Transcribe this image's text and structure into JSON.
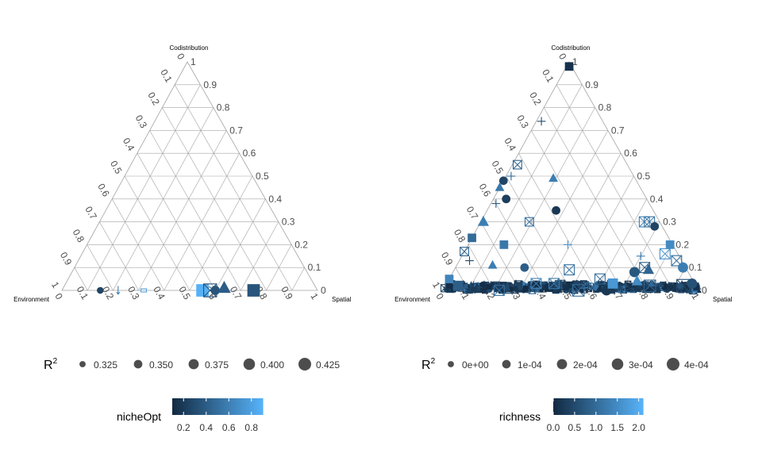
{
  "chart_data": [
    {
      "type": "scatter",
      "subtype": "ternary",
      "axes": {
        "top": "Codistribution",
        "left": "Environment",
        "right": "Spatial"
      },
      "ticks": [
        "0",
        "0.1",
        "0.2",
        "0.3",
        "0.4",
        "0.5",
        "0.6",
        "0.7",
        "0.8",
        "0.9",
        "1"
      ],
      "gridlines": true,
      "legend_size": {
        "title": "R",
        "title_superscript": "2",
        "labels": [
          "0.325",
          "0.350",
          "0.375",
          "0.400",
          "0.425"
        ]
      },
      "legend_color": {
        "title": "nicheOpt",
        "labels": [
          "0.2",
          "0.4",
          "0.6",
          "0.8"
        ],
        "range": [
          0.1,
          0.9
        ],
        "colors": [
          "#132b43",
          "#56b1f7"
        ]
      },
      "points": [
        {
          "codist": 0.0,
          "spatial": 0.15,
          "shape": "circle",
          "size": 0.33,
          "color": 0.25
        },
        {
          "codist": 0.0,
          "spatial": 0.22,
          "shape": "arrow",
          "size": 0.32,
          "color": 0.6
        },
        {
          "codist": 0.0,
          "spatial": 0.32,
          "shape": "square-open",
          "size": 0.32,
          "color": 0.8
        },
        {
          "codist": 0.0,
          "spatial": 0.55,
          "shape": "square",
          "size": 0.42,
          "color": 0.9
        },
        {
          "codist": 0.0,
          "spatial": 0.58,
          "shape": "square-x",
          "size": 0.43,
          "color": 0.3
        },
        {
          "codist": 0.0,
          "spatial": 0.6,
          "shape": "circle",
          "size": 0.36,
          "color": 0.35
        },
        {
          "codist": 0.01,
          "spatial": 0.63,
          "shape": "triangle",
          "size": 0.41,
          "color": 0.4
        },
        {
          "codist": 0.0,
          "spatial": 0.75,
          "shape": "square",
          "size": 0.42,
          "color": 0.35
        }
      ]
    },
    {
      "type": "scatter",
      "subtype": "ternary",
      "axes": {
        "top": "Codistribution",
        "left": "Environment",
        "right": "Spatial"
      },
      "ticks": [
        "0",
        "0.1",
        "0.2",
        "0.3",
        "0.4",
        "0.5",
        "0.6",
        "0.7",
        "0.8",
        "0.9",
        "1"
      ],
      "gridlines": true,
      "legend_size": {
        "title": "R",
        "title_superscript": "2",
        "labels": [
          "0e+00",
          "1e-04",
          "2e-04",
          "3e-04",
          "4e-04"
        ]
      },
      "legend_color": {
        "title": "richness",
        "labels": [
          "0.0",
          "0.5",
          "1.0",
          "1.5",
          "2.0"
        ],
        "range": [
          0.0,
          2.1
        ],
        "colors": [
          "#132b43",
          "#56b1f7"
        ]
      },
      "points": [
        {
          "codist": 0.98,
          "spatial": 0.01,
          "shape": "square",
          "size": 0.0001,
          "color": 0.1
        },
        {
          "codist": 0.74,
          "spatial": 0.02,
          "shape": "cross",
          "size": 0.0001,
          "color": 0.5
        },
        {
          "codist": 0.55,
          "spatial": 0.02,
          "shape": "square-x",
          "size": 0.0001,
          "color": 0.9
        },
        {
          "codist": 0.5,
          "spatial": 0.02,
          "shape": "cross",
          "size": 0.0001,
          "color": 1.0
        },
        {
          "codist": 0.48,
          "spatial": 0.0,
          "shape": "circle",
          "size": 0.0001,
          "color": 0.4
        },
        {
          "codist": 0.45,
          "spatial": 0.0,
          "shape": "triangle",
          "size": 0.0001,
          "color": 1.2
        },
        {
          "codist": 0.4,
          "spatial": 0.05,
          "shape": "circle",
          "size": 0.0001,
          "color": 0.3
        },
        {
          "codist": 0.38,
          "spatial": 0.02,
          "shape": "cross",
          "size": 0.0001,
          "color": 0.8
        },
        {
          "codist": 0.3,
          "spatial": 0.01,
          "shape": "triangle",
          "size": 0.0002,
          "color": 1.3
        },
        {
          "codist": 0.23,
          "spatial": 0.0,
          "shape": "square",
          "size": 0.0001,
          "color": 1.0
        },
        {
          "codist": 0.17,
          "spatial": 0.0,
          "shape": "square-x",
          "size": 0.0001,
          "color": 0.9
        },
        {
          "codist": 0.13,
          "spatial": 0.04,
          "shape": "cross",
          "size": 0.0001,
          "color": 0.5
        },
        {
          "codist": 0.05,
          "spatial": 0.0,
          "shape": "square",
          "size": 0.0001,
          "color": 1.4
        },
        {
          "codist": 0.49,
          "spatial": 0.19,
          "shape": "triangle",
          "size": 0.0001,
          "color": 1.3
        },
        {
          "codist": 0.35,
          "spatial": 0.27,
          "shape": "circle",
          "size": 0.0001,
          "color": 0.2
        },
        {
          "codist": 0.3,
          "spatial": 0.19,
          "shape": "square-x",
          "size": 0.0001,
          "color": 1.1
        },
        {
          "codist": 0.2,
          "spatial": 0.39,
          "shape": "cross",
          "size": 0.0001,
          "color": 1.6
        },
        {
          "codist": 0.2,
          "spatial": 0.14,
          "shape": "square",
          "size": 0.0001,
          "color": 1.2
        },
        {
          "codist": 0.1,
          "spatial": 0.27,
          "shape": "circle",
          "size": 0.0001,
          "color": 0.8
        },
        {
          "codist": 0.11,
          "spatial": 0.14,
          "shape": "triangle",
          "size": 0.0001,
          "color": 1.3
        },
        {
          "codist": 0.09,
          "spatial": 0.45,
          "shape": "square-x",
          "size": 0.0002,
          "color": 1.1
        },
        {
          "codist": 0.1,
          "spatial": 0.74,
          "shape": "square-x",
          "size": 0.0002,
          "color": 0.8
        },
        {
          "codist": 0.08,
          "spatial": 0.71,
          "shape": "circle",
          "size": 0.0002,
          "color": 0.7
        },
        {
          "codist": 0.05,
          "spatial": 0.59,
          "shape": "square-x",
          "size": 0.0002,
          "color": 1.0
        },
        {
          "codist": 0.04,
          "spatial": 0.74,
          "shape": "triangle",
          "size": 0.0002,
          "color": 1.5
        },
        {
          "codist": 0.02,
          "spatial": 0.8,
          "shape": "square-x",
          "size": 0.0003,
          "color": 0.9
        },
        {
          "codist": 0.0,
          "spatial": 0.53,
          "shape": "square-x",
          "size": 0.0003,
          "color": 1.0
        },
        {
          "codist": 0.0,
          "spatial": 0.22,
          "shape": "square-x",
          "size": 0.0002,
          "color": 1.1
        },
        {
          "codist": 0.0,
          "spatial": 0.64,
          "shape": "circle",
          "size": 0.0002,
          "color": 0.2
        },
        {
          "codist": 0.3,
          "spatial": 0.64,
          "shape": "square-x",
          "size": 0.0002,
          "color": 1.3
        },
        {
          "codist": 0.3,
          "spatial": 0.66,
          "shape": "square-x",
          "size": 0.0002,
          "color": 1.1
        },
        {
          "codist": 0.28,
          "spatial": 0.69,
          "shape": "circle",
          "size": 0.0001,
          "color": 0.4
        },
        {
          "codist": 0.2,
          "spatial": 0.79,
          "shape": "square",
          "size": 0.0001,
          "color": 1.5
        },
        {
          "codist": 0.16,
          "spatial": 0.79,
          "shape": "square-x",
          "size": 0.0002,
          "color": 1.6
        },
        {
          "codist": 0.13,
          "spatial": 0.85,
          "shape": "square-x",
          "size": 0.0002,
          "color": 1.0
        },
        {
          "codist": 0.1,
          "spatial": 0.89,
          "shape": "circle",
          "size": 0.0002,
          "color": 1.3
        },
        {
          "codist": 0.15,
          "spatial": 0.7,
          "shape": "cross",
          "size": 0.0001,
          "color": 1.2
        },
        {
          "codist": 0.09,
          "spatial": 0.76,
          "shape": "triangle",
          "size": 0.0002,
          "color": 0.9
        },
        {
          "codist": 0.03,
          "spatial": 0.42,
          "shape": "square-x",
          "size": 0.0002,
          "color": 1.2
        },
        {
          "codist": 0.03,
          "spatial": 0.35,
          "shape": "square-x",
          "size": 0.0002,
          "color": 1.4
        },
        {
          "codist": 0.03,
          "spatial": 0.65,
          "shape": "square",
          "size": 0.0002,
          "color": 1.7
        },
        {
          "codist": 0.02,
          "spatial": 0.93,
          "shape": "square-x",
          "size": 0.0004,
          "color": 0.5
        },
        {
          "codist": 0.03,
          "spatial": 0.96,
          "shape": "circle",
          "size": 0.0002,
          "color": 0.6
        },
        {
          "codist": 0.02,
          "spatial": 0.05,
          "shape": "square",
          "size": 0.0002,
          "color": 0.8
        }
      ],
      "cluster": {
        "note": "dense band of overlapping markers along the Environment–Spatial edge",
        "codist": [
          0.0,
          0.03
        ],
        "spatial": [
          0.0,
          1.0
        ]
      }
    }
  ]
}
